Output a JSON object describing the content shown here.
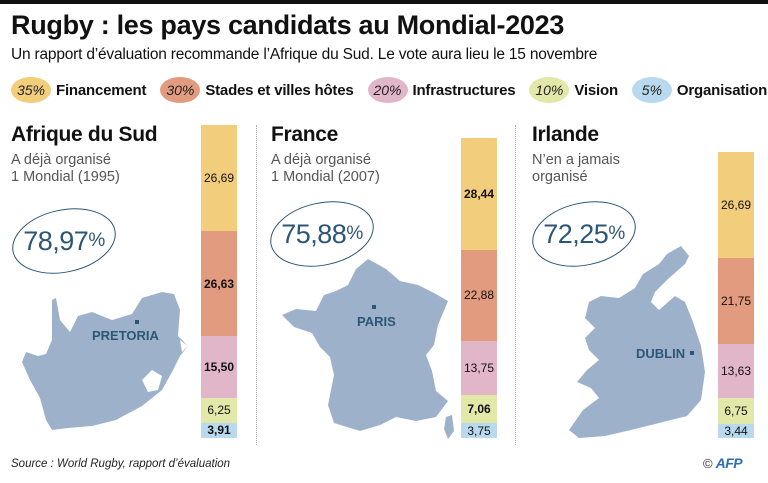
{
  "header": {
    "title": "Rugby : les pays candidats au Mondial-2023",
    "subtitle": "Un rapport d’évaluation recommande l’Afrique du Sud. Le vote aura lieu le 15 novembre"
  },
  "legend": [
    {
      "weight": "35%",
      "label": "Financement",
      "color": "#f2cd7b"
    },
    {
      "weight": "30%",
      "label": "Stades et villes hôtes",
      "color": "#e29b7f"
    },
    {
      "weight": "20%",
      "label": "Infrastructures",
      "color": "#e2b6c9"
    },
    {
      "weight": "10%",
      "label": "Vision",
      "color": "#e2e8a8"
    },
    {
      "weight": "5%",
      "label": "Organisation",
      "color": "#b9d9ee"
    }
  ],
  "countries": [
    {
      "name": "Afrique du Sud",
      "note_line1": "A déjà organisé",
      "note_line2": "1 Mondial (1995)",
      "score": "78,97",
      "score_unit": "%",
      "capital": "PRETORIA"
    },
    {
      "name": "France",
      "note_line1": "A déjà organisé",
      "note_line2": "1 Mondial (2007)",
      "score": "75,88",
      "score_unit": "%",
      "capital": "PARIS"
    },
    {
      "name": "Irlande",
      "note_line1": "N’en a jamais",
      "note_line2": "organisé",
      "score": "72,25",
      "score_unit": "%",
      "capital": "DUBLIN"
    }
  ],
  "chart_data": {
    "type": "bar",
    "stacked": true,
    "title": "Rugby : les pays candidats au Mondial-2023",
    "categories": [
      "Afrique du Sud",
      "France",
      "Irlande"
    ],
    "totals": [
      78.97,
      75.88,
      72.25
    ],
    "series": [
      {
        "name": "Financement",
        "weight": 35,
        "color": "#f2cd7b",
        "values": [
          26.69,
          28.44,
          26.69
        ],
        "labels": [
          "26,69",
          "28,44",
          "26,69"
        ],
        "best": [
          false,
          true,
          false
        ]
      },
      {
        "name": "Stades et villes hôtes",
        "weight": 30,
        "color": "#e29b7f",
        "values": [
          26.63,
          22.88,
          21.75
        ],
        "labels": [
          "26,63",
          "22,88",
          "21,75"
        ],
        "best": [
          true,
          false,
          false
        ]
      },
      {
        "name": "Infrastructures",
        "weight": 20,
        "color": "#e2b6c9",
        "values": [
          15.5,
          13.75,
          13.63
        ],
        "labels": [
          "15,50",
          "13,75",
          "13,63"
        ],
        "best": [
          true,
          false,
          false
        ]
      },
      {
        "name": "Vision",
        "weight": 10,
        "color": "#e2e8a8",
        "values": [
          6.25,
          7.06,
          6.75
        ],
        "labels": [
          "6,25",
          "7,06",
          "6,75"
        ],
        "best": [
          false,
          true,
          false
        ]
      },
      {
        "name": "Organisation",
        "weight": 5,
        "color": "#b9d9ee",
        "values": [
          3.91,
          3.75,
          3.44
        ],
        "labels": [
          "3,91",
          "3,75",
          "3,44"
        ],
        "best": [
          true,
          false,
          false
        ]
      }
    ],
    "xlabel": "",
    "ylabel": ""
  },
  "footer": {
    "source": "Source : World Rugby, rapport d’évaluation",
    "copyright": "©",
    "agency": "AFP"
  }
}
